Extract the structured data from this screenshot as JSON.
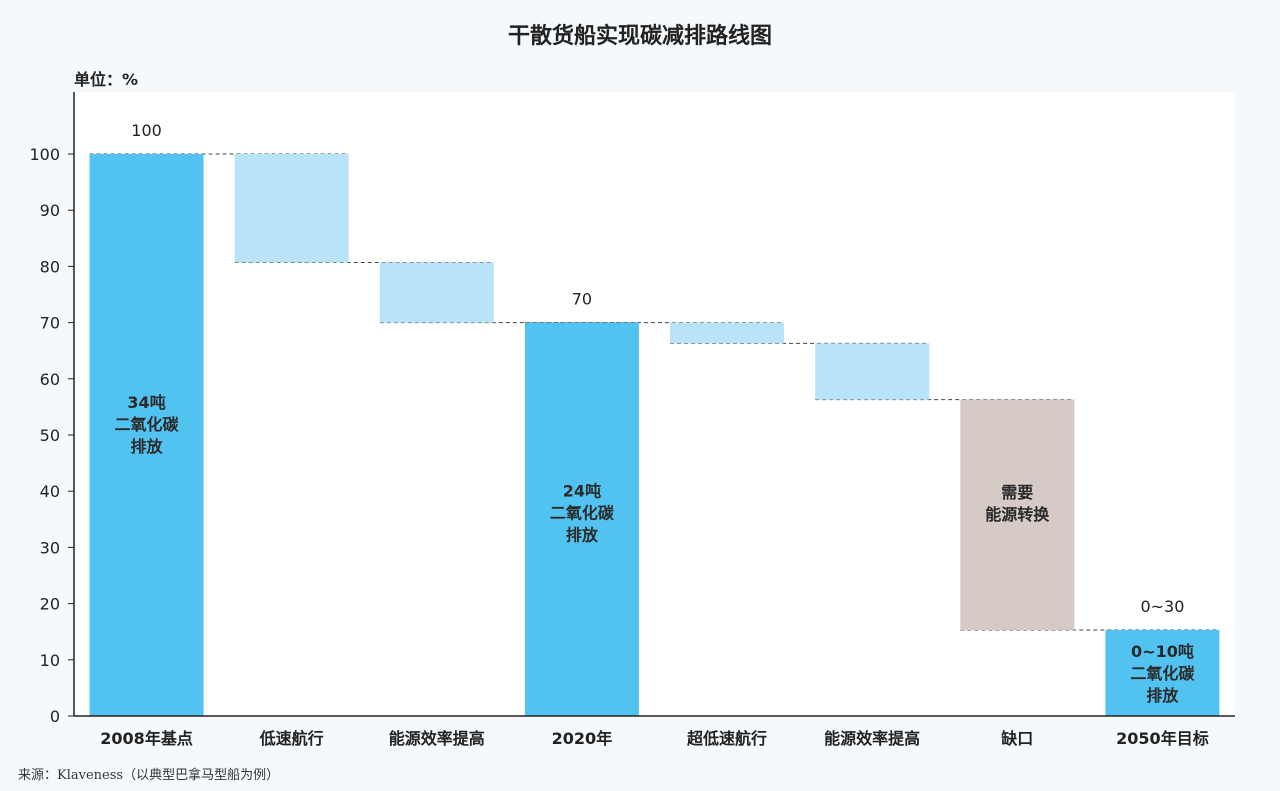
{
  "chart_data": {
    "type": "waterfall",
    "title": "干散货船实现碳减排路线图",
    "unit_label": "单位：%",
    "source": "来源：Klaveness（以典型巴拿马型船为例）",
    "ylim": [
      0,
      110
    ],
    "yticks": [
      0,
      10,
      20,
      30,
      40,
      50,
      60,
      70,
      80,
      90,
      100
    ],
    "grid": false,
    "categories": [
      "2008年基点",
      "低速航行",
      "能源效率提高",
      "2020年",
      "超低速航行",
      "能源效率提高",
      "缺口",
      "2050年目标"
    ],
    "bars": [
      {
        "category": "2008年基点",
        "kind": "total",
        "start": 0,
        "end": 100,
        "top_label": "100",
        "inner_label": [
          "34吨",
          "二氧化碳",
          "排放"
        ]
      },
      {
        "category": "低速航行",
        "kind": "reduction",
        "start": 80.7,
        "end": 100
      },
      {
        "category": "能源效率提高",
        "kind": "reduction",
        "start": 70,
        "end": 80.7
      },
      {
        "category": "2020年",
        "kind": "total",
        "start": 0,
        "end": 70,
        "top_label": "70",
        "inner_label": [
          "24吨",
          "二氧化碳",
          "排放"
        ]
      },
      {
        "category": "超低速航行",
        "kind": "reduction",
        "start": 66.3,
        "end": 70
      },
      {
        "category": "能源效率提高",
        "kind": "reduction",
        "start": 56.3,
        "end": 66.3
      },
      {
        "category": "缺口",
        "kind": "gap",
        "start": 15.3,
        "end": 56.3,
        "inner_label": [
          "需要",
          "能源转换"
        ]
      },
      {
        "category": "2050年目标",
        "kind": "total",
        "start": 0,
        "end": 15.3,
        "top_label": "0~30",
        "inner_label": [
          "0~10吨",
          "二氧化碳",
          "排放"
        ]
      }
    ],
    "colors": {
      "total": "#52c3f1",
      "reduction": "#b9e3f8",
      "gap": "#d5cac6",
      "plot_bg": "#ffffff",
      "axis": "#222222",
      "connector": "#444444"
    }
  }
}
